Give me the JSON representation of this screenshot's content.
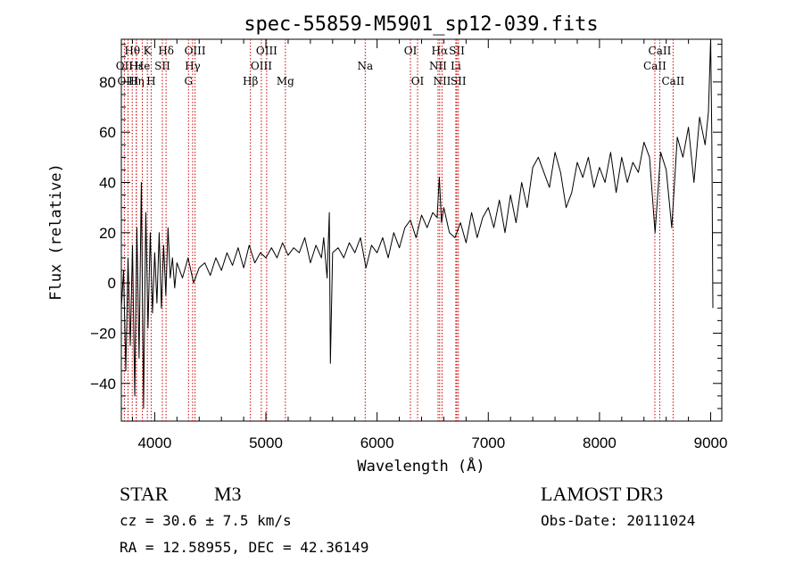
{
  "chart_data": {
    "type": "line",
    "title": "spec-55859-M5901_sp12-039.fits",
    "xlabel": "Wavelength (Å)",
    "ylabel": "Flux (relative)",
    "xlim": [
      3700,
      9100
    ],
    "ylim": [
      -55,
      97
    ],
    "xticks": [
      4000,
      5000,
      6000,
      7000,
      8000,
      9000
    ],
    "yticks": [
      -40,
      -20,
      0,
      20,
      40,
      60,
      80
    ],
    "series": [
      {
        "name": "flux",
        "x": [
          3700,
          3720,
          3740,
          3760,
          3780,
          3800,
          3820,
          3840,
          3860,
          3880,
          3900,
          3920,
          3940,
          3960,
          3980,
          4000,
          4020,
          4040,
          4060,
          4080,
          4100,
          4120,
          4140,
          4160,
          4180,
          4200,
          4250,
          4300,
          4350,
          4400,
          4450,
          4500,
          4550,
          4600,
          4650,
          4700,
          4750,
          4800,
          4850,
          4900,
          4950,
          5000,
          5050,
          5100,
          5150,
          5200,
          5250,
          5300,
          5350,
          5400,
          5450,
          5500,
          5520,
          5550,
          5570,
          5580,
          5600,
          5650,
          5700,
          5750,
          5800,
          5850,
          5900,
          5950,
          6000,
          6050,
          6100,
          6150,
          6200,
          6250,
          6300,
          6350,
          6400,
          6450,
          6500,
          6540,
          6560,
          6580,
          6600,
          6650,
          6700,
          6750,
          6800,
          6850,
          6900,
          6950,
          7000,
          7050,
          7100,
          7150,
          7200,
          7250,
          7300,
          7350,
          7400,
          7450,
          7500,
          7550,
          7600,
          7650,
          7700,
          7750,
          7800,
          7850,
          7900,
          7950,
          8000,
          8050,
          8100,
          8150,
          8200,
          8250,
          8300,
          8350,
          8400,
          8450,
          8500,
          8550,
          8600,
          8650,
          8700,
          8750,
          8800,
          8850,
          8900,
          8950,
          8980,
          9000,
          9010,
          9020
        ],
        "values": [
          -10,
          5,
          -35,
          10,
          -25,
          15,
          -45,
          22,
          -30,
          40,
          -50,
          28,
          -18,
          20,
          -12,
          12,
          -8,
          20,
          -10,
          15,
          -5,
          22,
          2,
          10,
          -2,
          8,
          2,
          10,
          0,
          6,
          8,
          3,
          10,
          5,
          12,
          7,
          14,
          6,
          15,
          8,
          12,
          10,
          14,
          10,
          16,
          11,
          14,
          12,
          18,
          8,
          15,
          10,
          18,
          2,
          28,
          -32,
          12,
          14,
          10,
          16,
          12,
          18,
          6,
          15,
          12,
          18,
          10,
          20,
          14,
          22,
          25,
          18,
          27,
          22,
          28,
          26,
          42,
          24,
          30,
          20,
          18,
          24,
          16,
          28,
          18,
          26,
          30,
          22,
          33,
          20,
          35,
          24,
          40,
          30,
          46,
          50,
          44,
          38,
          52,
          44,
          30,
          36,
          48,
          42,
          50,
          38,
          46,
          40,
          52,
          36,
          50,
          40,
          48,
          44,
          56,
          50,
          20,
          52,
          45,
          22,
          58,
          50,
          62,
          40,
          66,
          55,
          68,
          97,
          58,
          -10
        ]
      }
    ],
    "spectral_lines": [
      {
        "label": "Hθ",
        "x": 3798,
        "row": 1
      },
      {
        "label": "OII",
        "x": 3727,
        "row": 2
      },
      {
        "label": "OIII",
        "x": 3760,
        "row": 3
      },
      {
        "label": "Hε",
        "x": 3835,
        "row": 2
      },
      {
        "label": "Hη",
        "x": 3835,
        "row": 3
      },
      {
        "label": "K",
        "x": 3934,
        "row": 1
      },
      {
        "label": "He",
        "x": 3889,
        "row": 2
      },
      {
        "label": "H",
        "x": 3968,
        "row": 3
      },
      {
        "label": "SII",
        "x": 4069,
        "row": 2
      },
      {
        "label": "Hδ",
        "x": 4102,
        "row": 1
      },
      {
        "label": "OIII",
        "x": 4363,
        "row": 1
      },
      {
        "label": "Hγ",
        "x": 4341,
        "row": 2
      },
      {
        "label": "G",
        "x": 4304,
        "row": 3
      },
      {
        "label": "OIII",
        "x": 5007,
        "row": 1
      },
      {
        "label": "OIII",
        "x": 4959,
        "row": 2
      },
      {
        "label": "Hβ",
        "x": 4861,
        "row": 3
      },
      {
        "label": "Mg",
        "x": 5175,
        "row": 3
      },
      {
        "label": "Na",
        "x": 5893,
        "row": 2
      },
      {
        "label": "OI",
        "x": 6300,
        "row": 1
      },
      {
        "label": "OI",
        "x": 6364,
        "row": 3
      },
      {
        "label": "Hα",
        "x": 6563,
        "row": 1
      },
      {
        "label": "SII",
        "x": 6717,
        "row": 1
      },
      {
        "label": "NII",
        "x": 6548,
        "row": 2
      },
      {
        "label": "Li",
        "x": 6708,
        "row": 2
      },
      {
        "label": "NII",
        "x": 6584,
        "row": 3
      },
      {
        "label": "SII",
        "x": 6731,
        "row": 3
      },
      {
        "label": "CaII",
        "x": 8542,
        "row": 1
      },
      {
        "label": "CaII",
        "x": 8498,
        "row": 2
      },
      {
        "label": "CaII",
        "x": 8662,
        "row": 3
      }
    ]
  },
  "info": {
    "object_class": "STAR",
    "subclass": "M3",
    "survey": "LAMOST DR3",
    "cz": "cz = 30.6 ± 7.5 km/s",
    "obs_date": "Obs-Date: 20111024",
    "coords": "RA =  12.58955, DEC =  42.36149"
  }
}
